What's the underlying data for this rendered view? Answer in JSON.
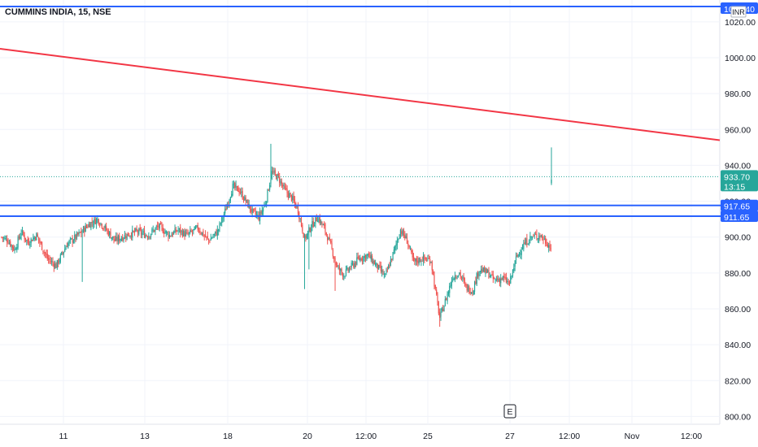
{
  "symbol_title": "CUMMINS INDIA, 15, NSE",
  "currency": "INR",
  "earnings_marker": "E",
  "colors": {
    "up": "#26a69a",
    "down": "#ef5350",
    "trendline": "#f23645",
    "hline": "#2962ff",
    "grid": "#f0f3fa",
    "axis_text": "#131722"
  },
  "chart_data": {
    "type": "candlestick",
    "title": "CUMMINS INDIA, 15, NSE",
    "ylim": [
      796,
      1030
    ],
    "grid": true,
    "y_ticks": [
      "800.00",
      "820.00",
      "840.00",
      "860.00",
      "880.00",
      "900.00",
      "920.00",
      "940.00",
      "960.00",
      "980.00",
      "1000.00",
      "1020.00"
    ],
    "x_ticks": [
      "11",
      "13",
      "18",
      "20",
      "12:00",
      "25",
      "27",
      "12:00",
      "Nov",
      "12:00"
    ],
    "current_price": "933.70",
    "countdown": "13:15",
    "horizontal_levels": [
      {
        "value": 1029.4,
        "label": "1029.40"
      },
      {
        "value": 917.65,
        "label": "917.65"
      },
      {
        "value": 911.65,
        "label": "911.65"
      }
    ],
    "trendline": {
      "from": 1005,
      "to": 954
    },
    "price_path": [
      {
        "i": 0,
        "p": 900
      },
      {
        "i": 6,
        "p": 898
      },
      {
        "i": 12,
        "p": 893
      },
      {
        "i": 18,
        "p": 903
      },
      {
        "i": 24,
        "p": 897
      },
      {
        "i": 32,
        "p": 901
      },
      {
        "i": 42,
        "p": 888
      },
      {
        "i": 50,
        "p": 884
      },
      {
        "i": 60,
        "p": 896
      },
      {
        "i": 70,
        "p": 901
      },
      {
        "i": 80,
        "p": 907
      },
      {
        "i": 88,
        "p": 910
      },
      {
        "i": 96,
        "p": 904
      },
      {
        "i": 104,
        "p": 898
      },
      {
        "i": 114,
        "p": 901
      },
      {
        "i": 124,
        "p": 903
      },
      {
        "i": 134,
        "p": 901
      },
      {
        "i": 144,
        "p": 906
      },
      {
        "i": 154,
        "p": 901
      },
      {
        "i": 162,
        "p": 904
      },
      {
        "i": 170,
        "p": 901
      },
      {
        "i": 180,
        "p": 905
      },
      {
        "i": 190,
        "p": 898
      },
      {
        "i": 198,
        "p": 903
      },
      {
        "i": 206,
        "p": 916
      },
      {
        "i": 212,
        "p": 928
      },
      {
        "i": 218,
        "p": 926
      },
      {
        "i": 224,
        "p": 920
      },
      {
        "i": 230,
        "p": 914
      },
      {
        "i": 236,
        "p": 911
      },
      {
        "i": 242,
        "p": 919
      },
      {
        "i": 248,
        "p": 936
      },
      {
        "i": 254,
        "p": 933
      },
      {
        "i": 260,
        "p": 926
      },
      {
        "i": 266,
        "p": 922
      },
      {
        "i": 272,
        "p": 915
      },
      {
        "i": 278,
        "p": 899
      },
      {
        "i": 284,
        "p": 906
      },
      {
        "i": 290,
        "p": 911
      },
      {
        "i": 296,
        "p": 905
      },
      {
        "i": 302,
        "p": 895
      },
      {
        "i": 308,
        "p": 883
      },
      {
        "i": 314,
        "p": 879
      },
      {
        "i": 320,
        "p": 883
      },
      {
        "i": 328,
        "p": 888
      },
      {
        "i": 336,
        "p": 890
      },
      {
        "i": 344,
        "p": 884
      },
      {
        "i": 352,
        "p": 878
      },
      {
        "i": 360,
        "p": 892
      },
      {
        "i": 366,
        "p": 904
      },
      {
        "i": 372,
        "p": 898
      },
      {
        "i": 378,
        "p": 886
      },
      {
        "i": 386,
        "p": 888
      },
      {
        "i": 394,
        "p": 887
      },
      {
        "i": 398,
        "p": 870
      },
      {
        "i": 402,
        "p": 855
      },
      {
        "i": 408,
        "p": 866
      },
      {
        "i": 414,
        "p": 878
      },
      {
        "i": 420,
        "p": 880
      },
      {
        "i": 426,
        "p": 872
      },
      {
        "i": 432,
        "p": 870
      },
      {
        "i": 438,
        "p": 882
      },
      {
        "i": 446,
        "p": 880
      },
      {
        "i": 452,
        "p": 876
      },
      {
        "i": 460,
        "p": 877
      },
      {
        "i": 466,
        "p": 874
      },
      {
        "i": 472,
        "p": 888
      },
      {
        "i": 478,
        "p": 895
      },
      {
        "i": 486,
        "p": 900
      },
      {
        "i": 494,
        "p": 901
      },
      {
        "i": 500,
        "p": 897
      },
      {
        "i": 504,
        "p": 894
      }
    ],
    "spike_candle": {
      "open": 930,
      "high": 950,
      "low": 929,
      "close": 932
    }
  }
}
